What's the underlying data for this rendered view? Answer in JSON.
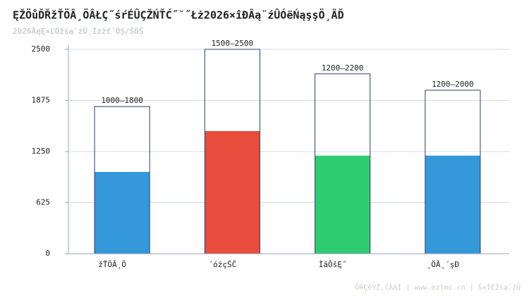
{
  "chart_data": {
    "type": "range-bar",
    "title": "ĘŽÖůĎŘžŤÖÂ¸ÖÂŁÇ˝śŕÉÛÇŽŃŤĆ˝˘˝Łż2026×îĐÂą¨źÛÓëŃąşşÖ¸ÄĎ",
    "subtitle": "2026ÄęĘ×ĽÖžśą¨źÛ¸Ìżžť¨ÓŞ/ŠÖŠ",
    "footer": "ÕŔÇëÝŽ¸ĉÂÁÌ | www.eztmc.cn | Š×ÌĚŽšą¨źÛ",
    "categories": [
      "žŤÖÂ¸Ö",
      "´óżçŠČ",
      "ÌãÕšĘ˝",
      "¸ÖÂ¸´şĐ"
    ],
    "low": [
      1000,
      1500,
      1200,
      1200
    ],
    "high": [
      1800,
      2500,
      2200,
      2000
    ],
    "range_labels": [
      "1000–1800",
      "1500–2500",
      "1200–2200",
      "1200–2000"
    ],
    "colors": [
      "#3498db",
      "#e74c3c",
      "#2ecc71",
      "#3498db"
    ],
    "outline_color": "#2c3e66",
    "ylim": [
      0,
      2500
    ],
    "yticks": [
      0,
      625,
      1250,
      1875,
      2500
    ],
    "grid": true
  }
}
